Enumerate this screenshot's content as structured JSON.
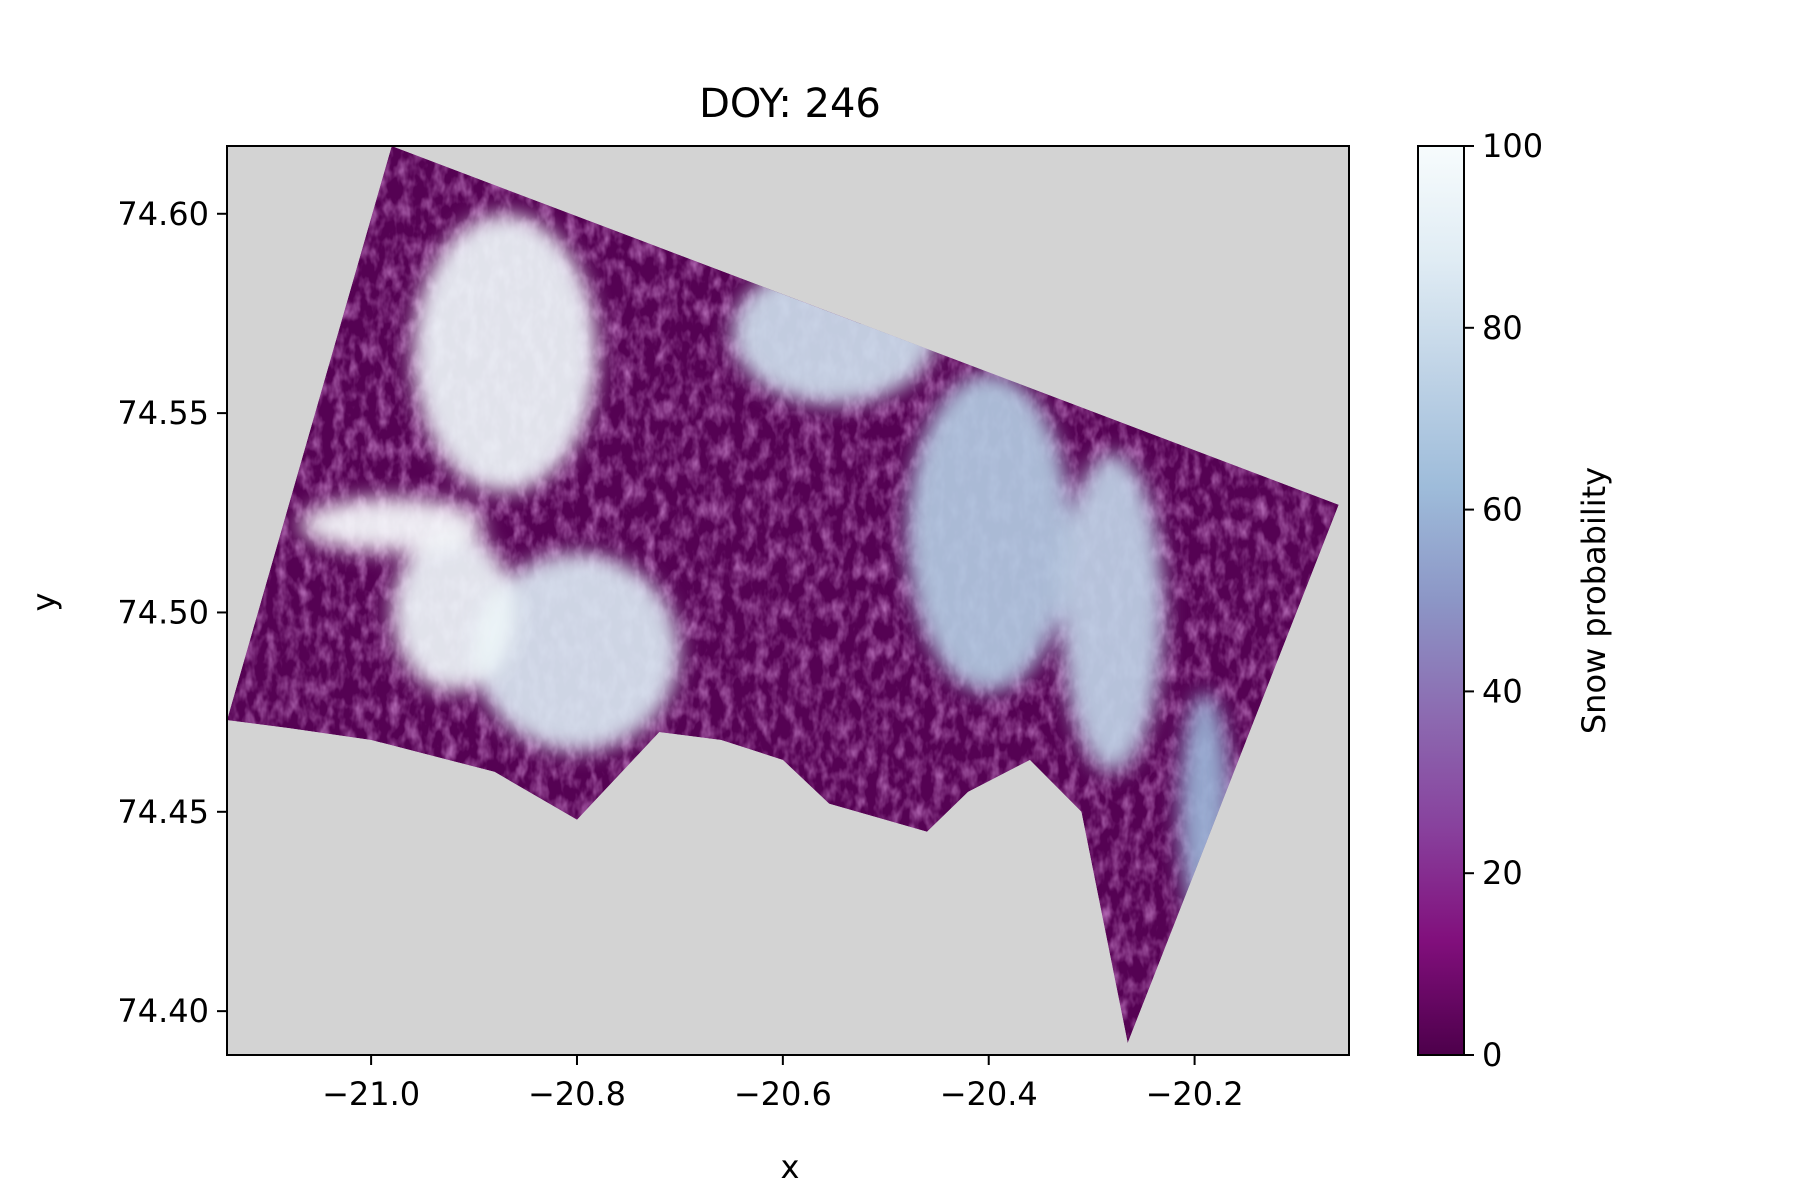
{
  "chart_data": {
    "type": "heatmap",
    "title": "DOY: 246",
    "xlabel": "x",
    "ylabel": "y",
    "xlim": [
      -21.14,
      -20.05
    ],
    "ylim": [
      74.389,
      74.617
    ],
    "xticks": [
      {
        "value": -21.0,
        "label": "−21.0"
      },
      {
        "value": -20.8,
        "label": "−20.8"
      },
      {
        "value": -20.6,
        "label": "−20.6"
      },
      {
        "value": -20.4,
        "label": "−20.4"
      },
      {
        "value": -20.2,
        "label": "−20.2"
      }
    ],
    "yticks": [
      {
        "value": 74.4,
        "label": "74.40"
      },
      {
        "value": 74.45,
        "label": "74.45"
      },
      {
        "value": 74.5,
        "label": "74.50"
      },
      {
        "value": 74.55,
        "label": "74.55"
      },
      {
        "value": 74.6,
        "label": "74.60"
      }
    ],
    "colorbar": {
      "label": "Snow probability",
      "range": [
        0,
        100
      ],
      "ticks": [
        {
          "value": 0,
          "label": "0"
        },
        {
          "value": 20,
          "label": "20"
        },
        {
          "value": 40,
          "label": "40"
        },
        {
          "value": 60,
          "label": "60"
        },
        {
          "value": 80,
          "label": "80"
        },
        {
          "value": 100,
          "label": "100"
        }
      ],
      "colormap": "BuPu_r",
      "stops": [
        {
          "value": 0,
          "color": "#4d004b"
        },
        {
          "value": 12.5,
          "color": "#810f7c"
        },
        {
          "value": 25,
          "color": "#88419d"
        },
        {
          "value": 37.5,
          "color": "#8c6bb1"
        },
        {
          "value": 50,
          "color": "#8c96c6"
        },
        {
          "value": 62.5,
          "color": "#9ebcda"
        },
        {
          "value": 75,
          "color": "#bfd3e6"
        },
        {
          "value": 87.5,
          "color": "#e0ecf4"
        },
        {
          "value": 100,
          "color": "#f7fcfd"
        }
      ]
    },
    "nodata_color": "#d3d3d3",
    "grid": false,
    "data_extent_outline": [
      [
        -21.14,
        74.473
      ],
      [
        -20.98,
        74.617
      ],
      [
        -20.06,
        74.527
      ],
      [
        -20.265,
        74.392
      ],
      [
        -20.31,
        74.45
      ],
      [
        -20.36,
        74.463
      ],
      [
        -20.42,
        74.455
      ],
      [
        -20.46,
        74.445
      ],
      [
        -20.555,
        74.452
      ],
      [
        -20.6,
        74.463
      ],
      [
        -20.66,
        74.468
      ],
      [
        -20.72,
        74.47
      ],
      [
        -20.8,
        74.448
      ],
      [
        -20.88,
        74.46
      ],
      [
        -21.0,
        74.468
      ],
      [
        -21.08,
        74.471
      ]
    ],
    "snow_regions": [
      {
        "center": [
          -20.87,
          74.565
        ],
        "radius": [
          0.09,
          0.035
        ],
        "probability": 95
      },
      {
        "center": [
          -20.8,
          74.49
        ],
        "radius": [
          0.1,
          0.025
        ],
        "probability": 85
      },
      {
        "center": [
          -20.92,
          74.5
        ],
        "radius": [
          0.06,
          0.02
        ],
        "probability": 95
      },
      {
        "center": [
          -20.55,
          74.57
        ],
        "radius": [
          0.1,
          0.018
        ],
        "probability": 80
      },
      {
        "center": [
          -20.4,
          74.52
        ],
        "radius": [
          0.08,
          0.04
        ],
        "probability": 70
      },
      {
        "center": [
          -20.28,
          74.5
        ],
        "radius": [
          0.05,
          0.04
        ],
        "probability": 75
      },
      {
        "center": [
          -20.19,
          74.45
        ],
        "radius": [
          0.025,
          0.03
        ],
        "probability": 60
      },
      {
        "center": [
          -20.98,
          74.522
        ],
        "radius": [
          0.09,
          0.007
        ],
        "probability": 100
      }
    ]
  }
}
